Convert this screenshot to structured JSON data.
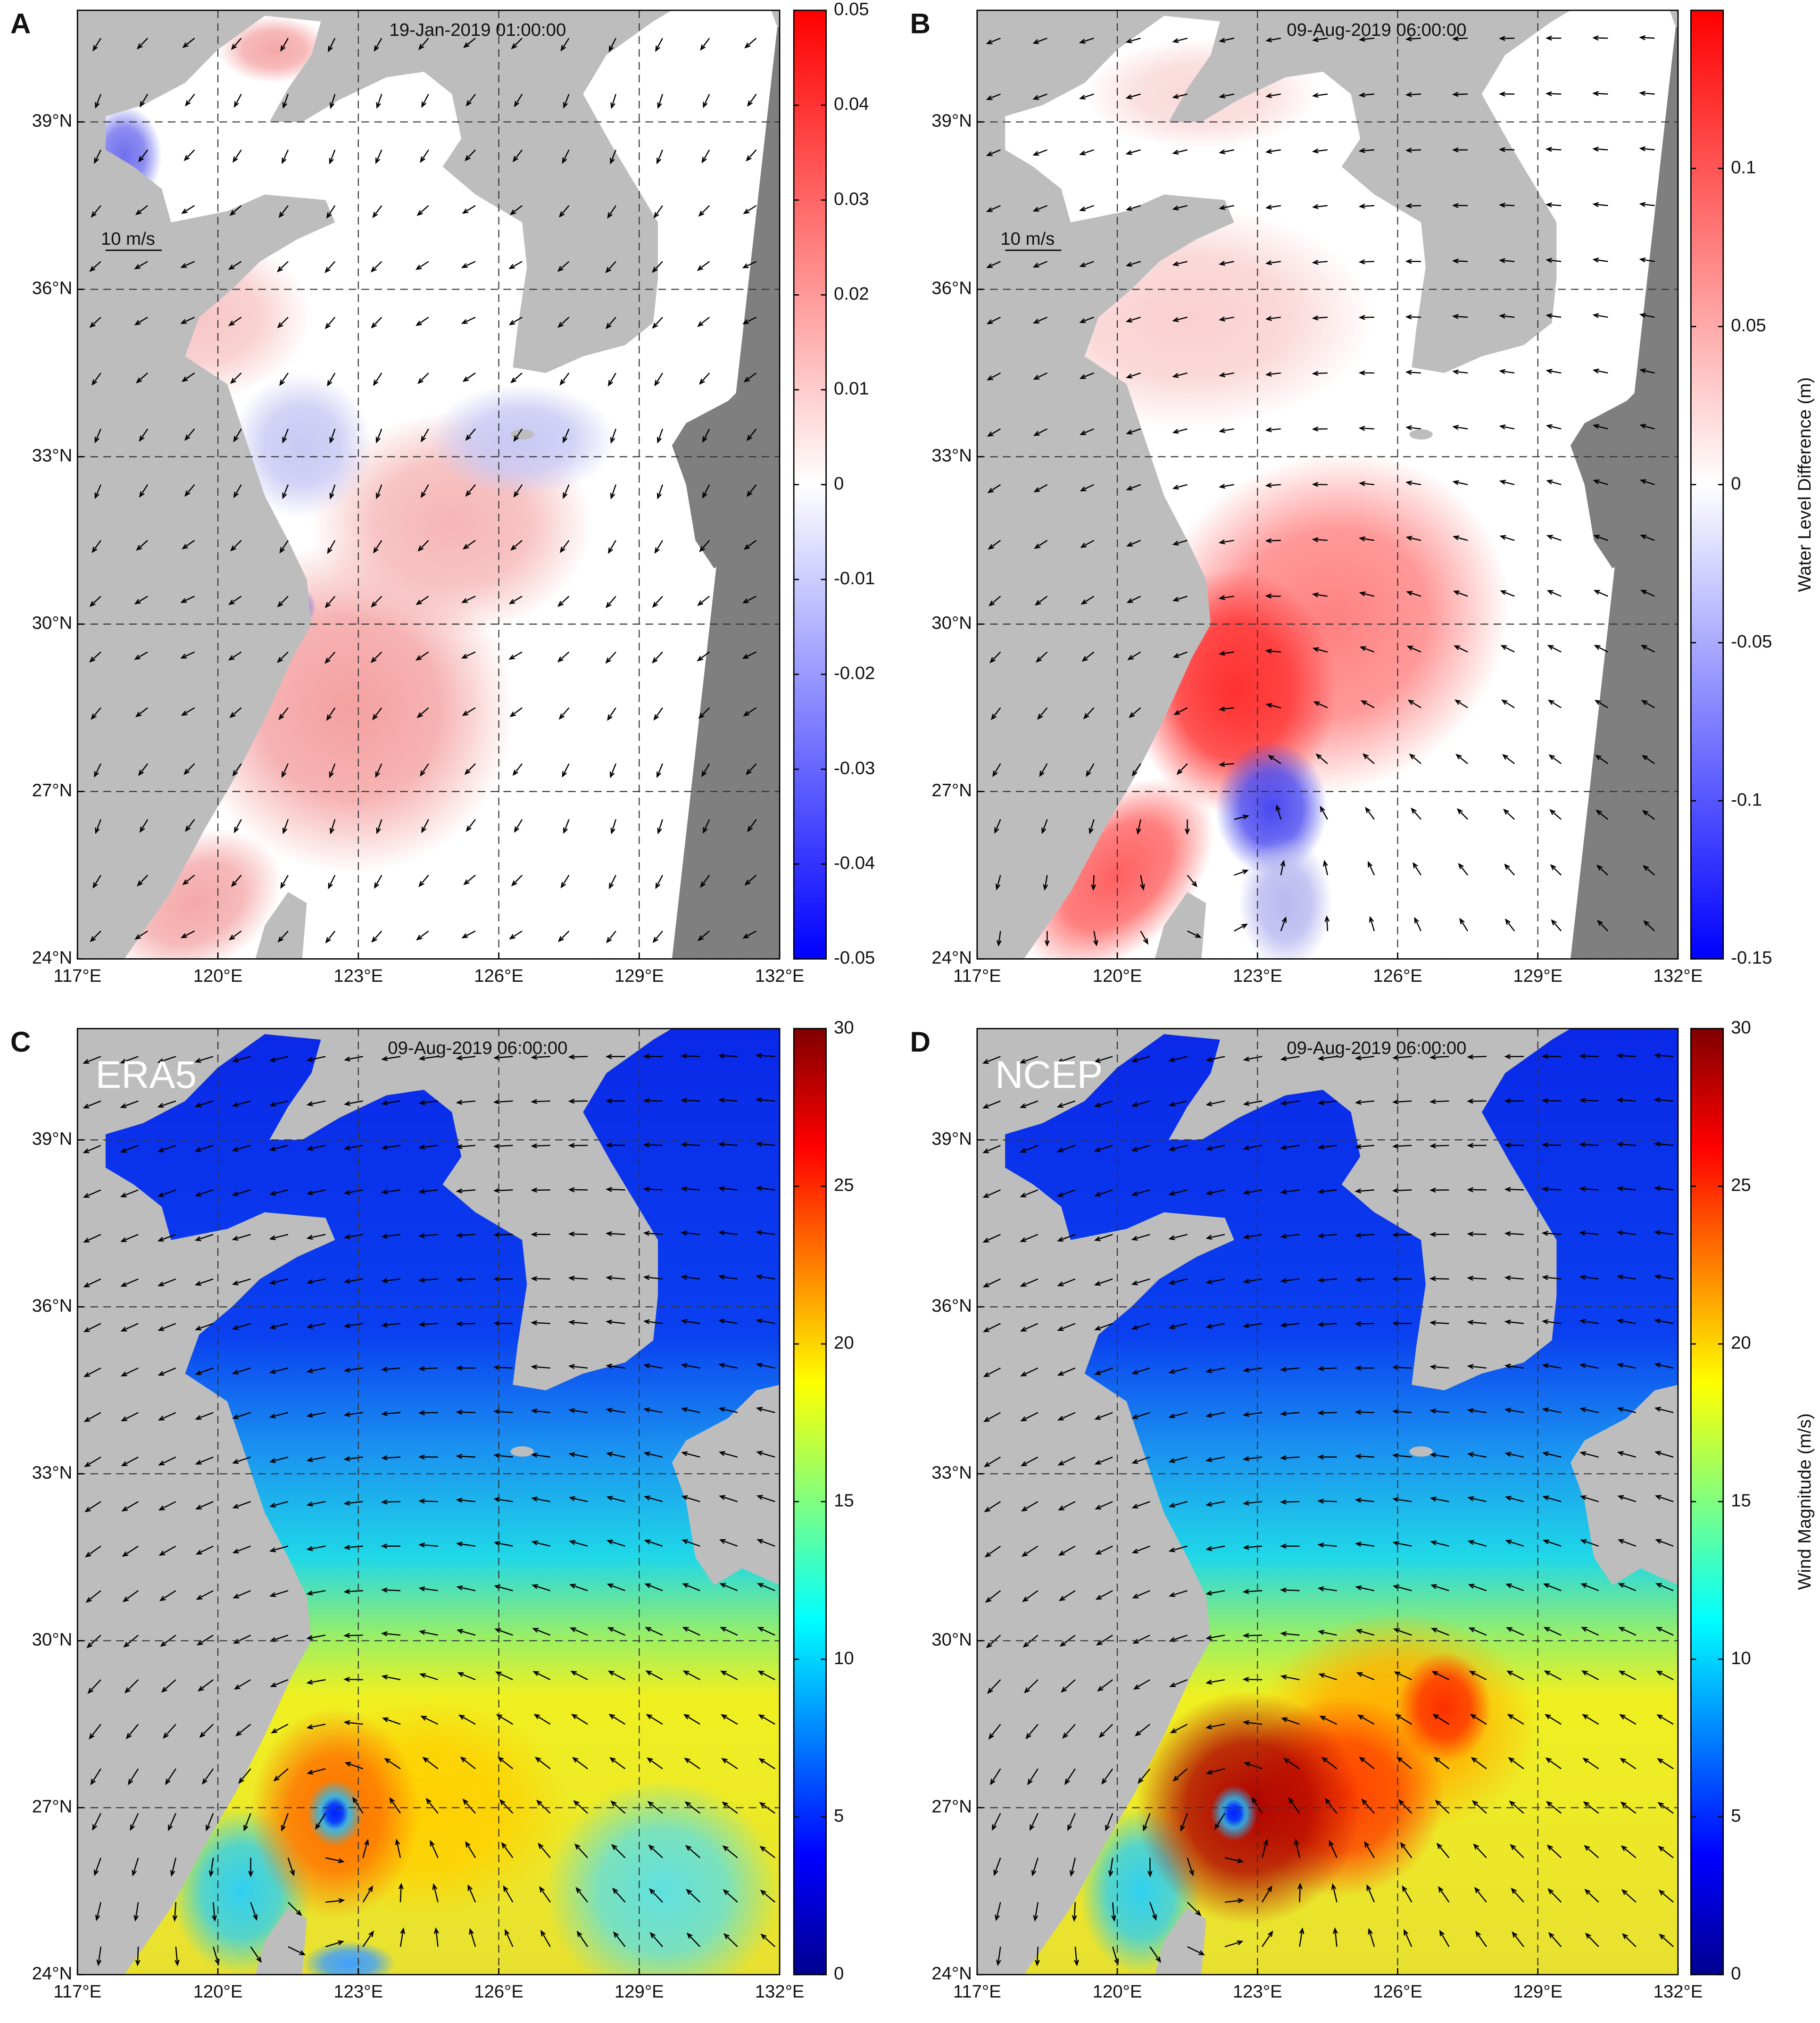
{
  "chart_data": [
    {
      "type": "map",
      "panel_label": "A",
      "timestamp": "19-Jan-2019 01:00:00",
      "scale_label": "10 m/s",
      "xlim": [
        117,
        132
      ],
      "xticks": [
        {
          "value": 117,
          "label": "117°E"
        },
        {
          "value": 120,
          "label": "120°E"
        },
        {
          "value": 123,
          "label": "123°E"
        },
        {
          "value": 126,
          "label": "126°E"
        },
        {
          "value": 129,
          "label": "129°E"
        },
        {
          "value": 132,
          "label": "132°E"
        }
      ],
      "ylim": [
        24,
        41
      ],
      "yticks": [
        {
          "value": 24,
          "label": "24°N"
        },
        {
          "value": 27,
          "label": "27°N"
        },
        {
          "value": 30,
          "label": "30°N"
        },
        {
          "value": 33,
          "label": "33°N"
        },
        {
          "value": 36,
          "label": "36°N"
        },
        {
          "value": 39,
          "label": "39°N"
        }
      ],
      "grid": true,
      "colorbar": {
        "colormap": "bwr",
        "clim": [
          -0.05,
          0.05
        ],
        "ticks": [
          -0.05,
          -0.04,
          -0.03,
          -0.02,
          -0.01,
          0,
          0.01,
          0.02,
          0.03,
          0.04,
          0.05
        ]
      }
    },
    {
      "type": "map",
      "panel_label": "B",
      "timestamp": "09-Aug-2019 06:00:00",
      "scale_label": "10 m/s",
      "xlim": [
        117,
        132
      ],
      "xticks": [
        {
          "value": 117,
          "label": "117°E"
        },
        {
          "value": 120,
          "label": "120°E"
        },
        {
          "value": 123,
          "label": "123°E"
        },
        {
          "value": 126,
          "label": "126°E"
        },
        {
          "value": 129,
          "label": "129°E"
        },
        {
          "value": 132,
          "label": "132°E"
        }
      ],
      "ylim": [
        24,
        41
      ],
      "yticks": [
        {
          "value": 24,
          "label": "24°N"
        },
        {
          "value": 27,
          "label": "27°N"
        },
        {
          "value": 30,
          "label": "30°N"
        },
        {
          "value": 33,
          "label": "33°N"
        },
        {
          "value": 36,
          "label": "36°N"
        },
        {
          "value": 39,
          "label": "39°N"
        }
      ],
      "grid": true,
      "colorbar": {
        "colormap": "bwr",
        "clim": [
          -0.15,
          0.15
        ],
        "ticks": [
          -0.15,
          -0.1,
          -0.05,
          0,
          0.05,
          0.1
        ],
        "label": "Water Level Difference (m)"
      }
    },
    {
      "type": "map",
      "panel_label": "C",
      "timestamp": "09-Aug-2019 06:00:00",
      "annotation": "ERA5",
      "xlim": [
        117,
        132
      ],
      "xticks": [
        {
          "value": 117,
          "label": "117°E"
        },
        {
          "value": 120,
          "label": "120°E"
        },
        {
          "value": 123,
          "label": "123°E"
        },
        {
          "value": 126,
          "label": "126°E"
        },
        {
          "value": 129,
          "label": "129°E"
        },
        {
          "value": 132,
          "label": "132°E"
        }
      ],
      "ylim": [
        24,
        41
      ],
      "yticks": [
        {
          "value": 24,
          "label": "24°N"
        },
        {
          "value": 27,
          "label": "27°N"
        },
        {
          "value": 30,
          "label": "30°N"
        },
        {
          "value": 33,
          "label": "33°N"
        },
        {
          "value": 36,
          "label": "36°N"
        },
        {
          "value": 39,
          "label": "39°N"
        }
      ],
      "grid": true,
      "colorbar": {
        "colormap": "jet",
        "clim": [
          0,
          30
        ],
        "ticks": [
          0,
          5,
          10,
          15,
          20,
          25,
          30
        ]
      }
    },
    {
      "type": "map",
      "panel_label": "D",
      "timestamp": "09-Aug-2019 06:00:00",
      "annotation": "NCEP",
      "xlim": [
        117,
        132
      ],
      "xticks": [
        {
          "value": 117,
          "label": "117°E"
        },
        {
          "value": 120,
          "label": "120°E"
        },
        {
          "value": 123,
          "label": "123°E"
        },
        {
          "value": 126,
          "label": "126°E"
        },
        {
          "value": 129,
          "label": "129°E"
        },
        {
          "value": 132,
          "label": "132°E"
        }
      ],
      "ylim": [
        24,
        41
      ],
      "yticks": [
        {
          "value": 24,
          "label": "24°N"
        },
        {
          "value": 27,
          "label": "27°N"
        },
        {
          "value": 30,
          "label": "30°N"
        },
        {
          "value": 33,
          "label": "33°N"
        },
        {
          "value": 36,
          "label": "36°N"
        },
        {
          "value": 39,
          "label": "39°N"
        }
      ],
      "grid": true,
      "colorbar": {
        "colormap": "jet",
        "clim": [
          0,
          30
        ],
        "ticks": [
          0,
          5,
          10,
          15,
          20,
          25,
          30
        ],
        "label": "Wind Magnitude (m/s)"
      }
    }
  ]
}
